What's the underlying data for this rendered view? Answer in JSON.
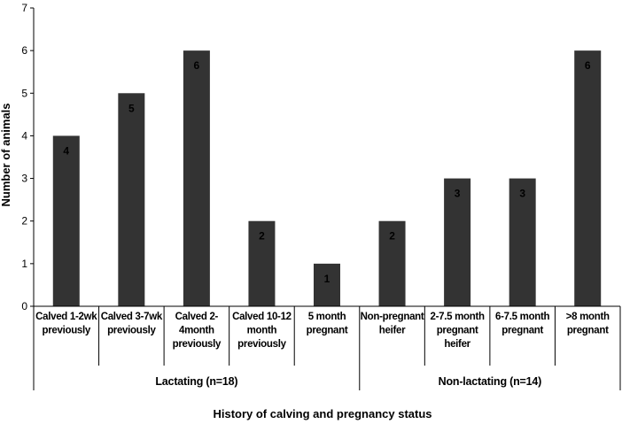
{
  "chart_data": {
    "type": "bar",
    "ylabel": "Number of animals",
    "xlabel": "History of calving and pregnancy status",
    "ylim": [
      0,
      7
    ],
    "yticks": [
      0,
      1,
      2,
      3,
      4,
      5,
      6,
      7
    ],
    "grid": false,
    "legend": "none",
    "bar_color": "#333333",
    "categories": [
      [
        "Calved 1-2wk",
        "previously"
      ],
      [
        "Calved 3-7wk",
        "previously"
      ],
      [
        "Calved 2-",
        "4month",
        "previously"
      ],
      [
        "Calved 10-12",
        "month",
        "previously"
      ],
      [
        "5 month",
        "pregnant"
      ],
      [
        "Non-pregnant",
        "heifer"
      ],
      [
        "2-7.5 month",
        "pregnant",
        "heifer"
      ],
      [
        "6-7.5 month",
        "pregnant"
      ],
      [
        ">8 month",
        "pregnant"
      ]
    ],
    "values": [
      4,
      5,
      6,
      2,
      1,
      2,
      3,
      3,
      6
    ],
    "data_labels": [
      "4",
      "5",
      "6",
      "2",
      "1",
      "2",
      "3",
      "3",
      "6"
    ],
    "groups": [
      {
        "label": "Lactating (n=18)",
        "categories": [
          0,
          1,
          2,
          3,
          4
        ]
      },
      {
        "label": "Non-lactating (n=14)",
        "categories": [
          5,
          6,
          7,
          8
        ]
      }
    ]
  }
}
